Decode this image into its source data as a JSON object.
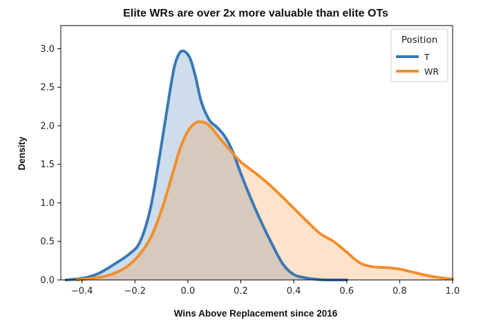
{
  "chart_data": {
    "type": "area",
    "title": "Elite WRs are over 2x more valuable than elite OTs",
    "xlabel": "Wins Above Replacement since 2016",
    "ylabel": "Density",
    "xlim": [
      -0.48,
      1.0
    ],
    "ylim": [
      0,
      3.3
    ],
    "xticks": [
      -0.4,
      -0.2,
      0.0,
      0.2,
      0.4,
      0.6,
      0.8,
      1.0
    ],
    "xtick_labels": [
      "−0.4",
      "−0.2",
      "0.0",
      "0.2",
      "0.4",
      "0.6",
      "0.8",
      "1.0"
    ],
    "yticks": [
      0.0,
      0.5,
      1.0,
      1.5,
      2.0,
      2.5,
      3.0
    ],
    "ytick_labels": [
      "0.0",
      "0.5",
      "1.0",
      "1.5",
      "2.0",
      "2.5",
      "3.0"
    ],
    "grid": false,
    "legend": {
      "title": "Position",
      "placement": "top-right"
    },
    "series": [
      {
        "name": "T",
        "color": "#3a78b5",
        "fill": "#c9d9e9",
        "x": [
          -0.46,
          -0.4,
          -0.34,
          -0.28,
          -0.22,
          -0.18,
          -0.14,
          -0.1,
          -0.07,
          -0.05,
          -0.03,
          -0.01,
          0.01,
          0.03,
          0.05,
          0.08,
          0.11,
          0.14,
          0.17,
          0.2,
          0.24,
          0.28,
          0.32,
          0.36,
          0.4,
          0.44,
          0.48,
          0.52,
          0.56,
          0.6
        ],
        "y": [
          0.0,
          0.02,
          0.08,
          0.2,
          0.34,
          0.5,
          0.95,
          1.75,
          2.4,
          2.78,
          2.95,
          2.96,
          2.86,
          2.62,
          2.32,
          2.08,
          1.98,
          1.86,
          1.66,
          1.38,
          1.04,
          0.73,
          0.45,
          0.2,
          0.07,
          0.03,
          0.01,
          0.0,
          0.0,
          0.0
        ]
      },
      {
        "name": "WR",
        "color": "#f28e2b",
        "fill": "#f7cfae",
        "x": [
          -0.42,
          -0.36,
          -0.3,
          -0.24,
          -0.19,
          -0.14,
          -0.1,
          -0.06,
          -0.03,
          0.0,
          0.03,
          0.05,
          0.07,
          0.09,
          0.12,
          0.16,
          0.2,
          0.25,
          0.3,
          0.35,
          0.4,
          0.45,
          0.5,
          0.55,
          0.6,
          0.65,
          0.7,
          0.75,
          0.8,
          0.85,
          0.9,
          0.95,
          1.0
        ],
        "y": [
          0.0,
          0.02,
          0.06,
          0.15,
          0.3,
          0.55,
          0.9,
          1.35,
          1.7,
          1.93,
          2.04,
          2.05,
          2.03,
          1.97,
          1.84,
          1.68,
          1.53,
          1.4,
          1.26,
          1.1,
          0.93,
          0.76,
          0.6,
          0.5,
          0.36,
          0.22,
          0.17,
          0.16,
          0.14,
          0.1,
          0.06,
          0.03,
          0.01
        ]
      }
    ]
  }
}
